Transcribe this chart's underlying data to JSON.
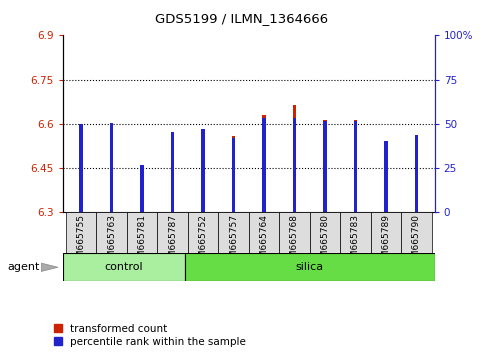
{
  "title": "GDS5199 / ILMN_1364666",
  "samples": [
    "GSM665755",
    "GSM665763",
    "GSM665781",
    "GSM665787",
    "GSM665752",
    "GSM665757",
    "GSM665764",
    "GSM665768",
    "GSM665780",
    "GSM665783",
    "GSM665789",
    "GSM665790"
  ],
  "groups": [
    "control",
    "control",
    "control",
    "control",
    "silica",
    "silica",
    "silica",
    "silica",
    "silica",
    "silica",
    "silica",
    "silica"
  ],
  "red_values": [
    6.601,
    6.602,
    6.449,
    6.57,
    6.572,
    6.56,
    6.63,
    6.663,
    6.612,
    6.612,
    6.47,
    6.562
  ],
  "blue_values": [
    6.601,
    6.602,
    6.461,
    6.571,
    6.584,
    6.553,
    6.62,
    6.62,
    6.61,
    6.61,
    6.543,
    6.563
  ],
  "ylim_left": [
    6.3,
    6.9
  ],
  "ylim_right": [
    0,
    100
  ],
  "yticks_left": [
    6.3,
    6.45,
    6.6,
    6.75,
    6.9
  ],
  "yticks_right": [
    0,
    25,
    50,
    75,
    100
  ],
  "ytick_labels_left": [
    "6.3",
    "6.45",
    "6.6",
    "6.75",
    "6.9"
  ],
  "ytick_labels_right": [
    "0",
    "25",
    "50",
    "75",
    "100%"
  ],
  "hlines": [
    6.45,
    6.6,
    6.75
  ],
  "bar_bottom": 6.3,
  "red_bar_width": 0.12,
  "blue_bar_width": 0.12,
  "red_color": "#cc2200",
  "blue_color": "#2222cc",
  "control_color": "#aaeea0",
  "silica_color": "#66dd44",
  "bg_color": "#ffffff",
  "plot_bg": "#ffffff",
  "agent_label": "agent",
  "legend_items": [
    "transformed count",
    "percentile rank within the sample"
  ],
  "n_control": 4,
  "n_silica": 8
}
